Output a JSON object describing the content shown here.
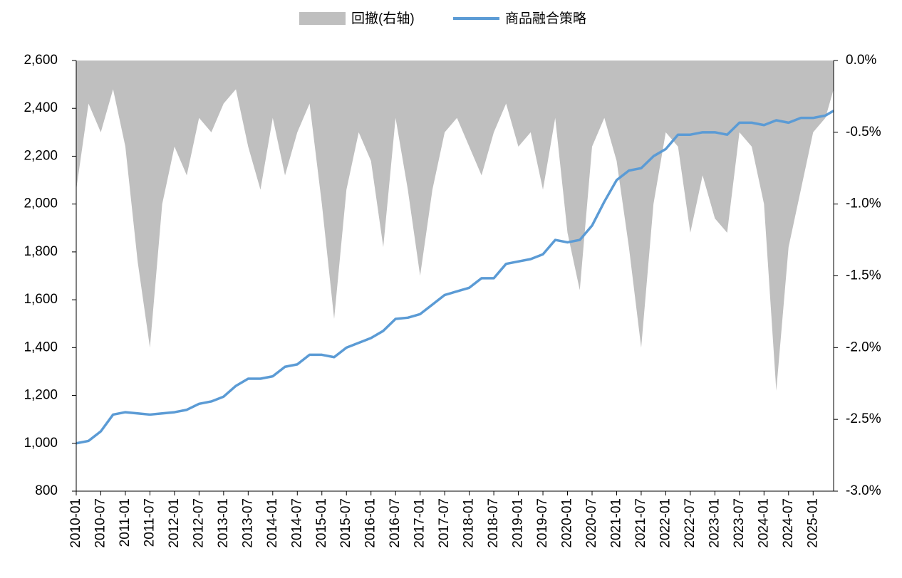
{
  "chart_data": {
    "type": "line",
    "x": [
      "2010-01",
      "2010-04",
      "2010-07",
      "2010-10",
      "2011-01",
      "2011-04",
      "2011-07",
      "2011-10",
      "2012-01",
      "2012-04",
      "2012-07",
      "2012-10",
      "2013-01",
      "2013-04",
      "2013-07",
      "2013-10",
      "2014-01",
      "2014-04",
      "2014-07",
      "2014-10",
      "2015-01",
      "2015-04",
      "2015-07",
      "2015-10",
      "2016-01",
      "2016-04",
      "2016-07",
      "2016-10",
      "2017-01",
      "2017-04",
      "2017-07",
      "2017-10",
      "2018-01",
      "2018-04",
      "2018-07",
      "2018-10",
      "2019-01",
      "2019-04",
      "2019-07",
      "2019-10",
      "2020-01",
      "2020-04",
      "2020-07",
      "2020-10",
      "2021-01",
      "2021-04",
      "2021-07",
      "2021-10",
      "2022-01",
      "2022-04",
      "2022-07",
      "2022-10",
      "2023-01",
      "2023-04",
      "2023-07",
      "2023-10",
      "2024-01",
      "2024-04",
      "2024-07",
      "2024-10",
      "2025-01",
      "2025-04",
      "2025-06"
    ],
    "xlim": [
      "2010-01",
      "2025-06"
    ],
    "xticks": [
      "2010-01",
      "2010-07",
      "2011-01",
      "2011-07",
      "2012-01",
      "2012-07",
      "2013-01",
      "2013-07",
      "2014-01",
      "2014-07",
      "2015-01",
      "2015-07",
      "2016-01",
      "2016-07",
      "2017-01",
      "2017-07",
      "2018-01",
      "2018-07",
      "2019-01",
      "2019-07",
      "2020-01",
      "2020-07",
      "2021-01",
      "2021-07",
      "2022-01",
      "2022-07",
      "2023-01",
      "2023-07",
      "2024-01",
      "2024-07",
      "2025-01"
    ],
    "series": [
      {
        "name": "回撤(右轴)",
        "type": "area",
        "axis": "y2",
        "color": "#bfbfbf",
        "values": [
          -0.9,
          -0.3,
          -0.5,
          -0.2,
          -0.6,
          -1.4,
          -2.0,
          -1.0,
          -0.6,
          -0.8,
          -0.4,
          -0.5,
          -0.3,
          -0.2,
          -0.6,
          -0.9,
          -0.4,
          -0.8,
          -0.5,
          -0.3,
          -1.0,
          -1.8,
          -0.9,
          -0.5,
          -0.7,
          -1.3,
          -0.4,
          -0.9,
          -1.5,
          -0.9,
          -0.5,
          -0.4,
          -0.6,
          -0.8,
          -0.5,
          -0.3,
          -0.6,
          -0.5,
          -0.9,
          -0.4,
          -1.2,
          -1.6,
          -0.6,
          -0.4,
          -0.7,
          -1.3,
          -2.0,
          -1.0,
          -0.5,
          -0.6,
          -1.2,
          -0.8,
          -1.1,
          -1.2,
          -0.5,
          -0.6,
          -1.0,
          -2.3,
          -1.3,
          -0.9,
          -0.5,
          -0.4,
          -0.2
        ]
      },
      {
        "name": "商品融合策略",
        "type": "line",
        "color": "#5b9bd5",
        "values": [
          1000,
          1010,
          1050,
          1120,
          1130,
          1125,
          1120,
          1125,
          1130,
          1140,
          1165,
          1175,
          1195,
          1240,
          1270,
          1270,
          1280,
          1320,
          1330,
          1370,
          1370,
          1360,
          1400,
          1420,
          1440,
          1470,
          1520,
          1525,
          1540,
          1580,
          1620,
          1635,
          1650,
          1690,
          1690,
          1750,
          1760,
          1770,
          1790,
          1850,
          1840,
          1850,
          1910,
          2010,
          2100,
          2140,
          2150,
          2200,
          2230,
          2290,
          2290,
          2300,
          2300,
          2290,
          2340,
          2340,
          2330,
          2350,
          2340,
          2360,
          2360,
          2370,
          2390
        ]
      }
    ],
    "ylim": [
      800,
      2600
    ],
    "yticks": [
      800,
      {
        "value": 1000,
        "label": "1,000"
      },
      {
        "value": 1200,
        "label": "1,200"
      },
      {
        "value": 1400,
        "label": "1,400"
      },
      {
        "value": 1600,
        "label": "1,600"
      },
      {
        "value": 1800,
        "label": "1,800"
      },
      {
        "value": 2000,
        "label": "2,000"
      },
      {
        "value": 2200,
        "label": "2,200"
      },
      {
        "value": 2400,
        "label": "2,400"
      },
      {
        "value": 2600,
        "label": "2,600"
      }
    ],
    "y2lim": [
      -3,
      0
    ],
    "y2ticks": [
      {
        "value": 0,
        "label": "0.0%"
      },
      {
        "value": -0.5,
        "label": "-0.5%"
      },
      {
        "value": -1,
        "label": "-1.0%"
      },
      {
        "value": -1.5,
        "label": "-1.5%"
      },
      {
        "value": -2,
        "label": "-2.0%"
      },
      {
        "value": -2.5,
        "label": "-2.5%"
      },
      {
        "value": -3,
        "label": "-3.0%"
      }
    ],
    "legend": "top"
  }
}
